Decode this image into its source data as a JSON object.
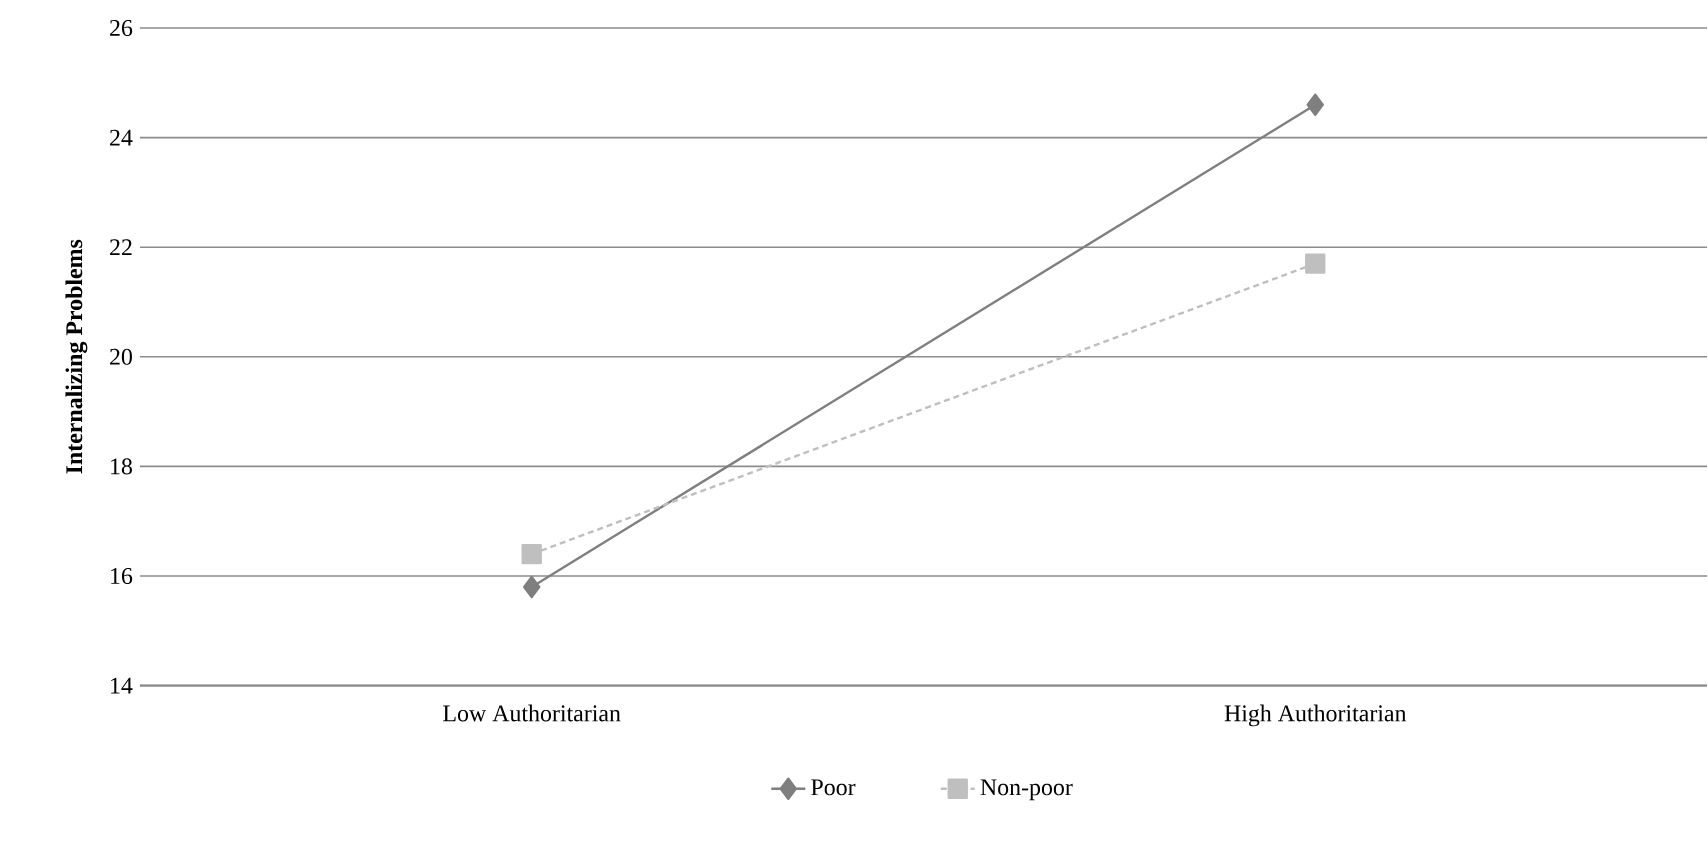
{
  "chart_data": {
    "type": "line",
    "ylabel": "Internalizing Problems",
    "categories": [
      "Low Authoritarian",
      "High Authoritarian"
    ],
    "series": [
      {
        "name": "Poor",
        "color": "#7f7f7f",
        "values": [
          15.8,
          24.6
        ],
        "marker": "diamond",
        "line_style": "solid"
      },
      {
        "name": "Non-poor",
        "color": "#bfbfbf",
        "values": [
          16.4,
          21.7
        ],
        "marker": "square",
        "line_style": "dashed"
      }
    ],
    "ylim": [
      14,
      26
    ],
    "yticks": [
      14,
      16,
      18,
      20,
      22,
      24,
      26
    ],
    "grid": "y",
    "legend": "bottom"
  }
}
